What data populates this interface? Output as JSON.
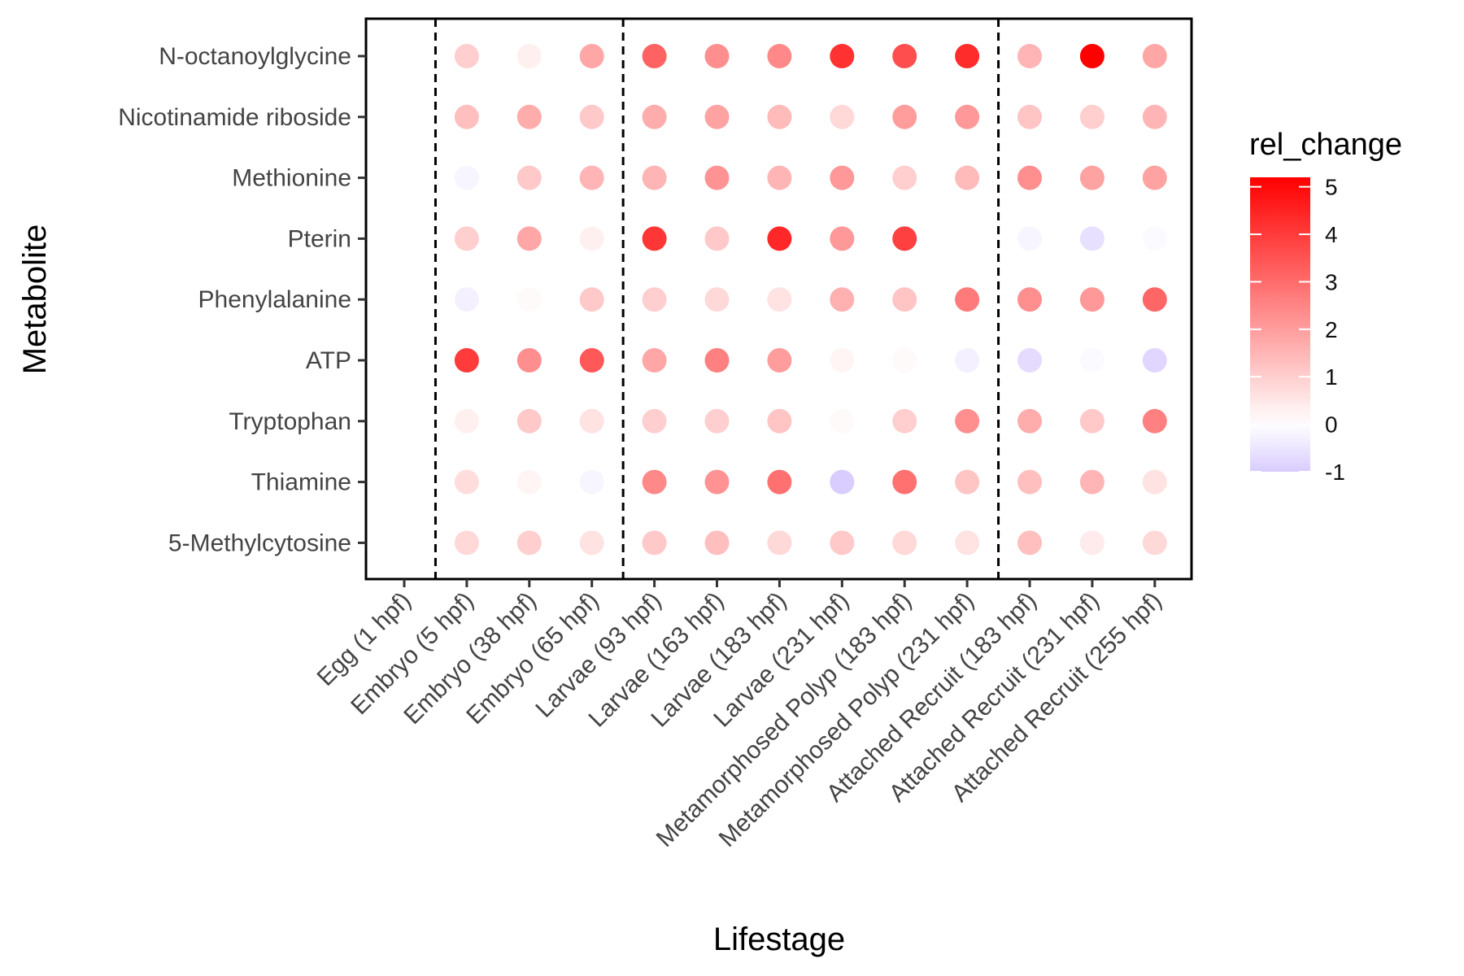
{
  "chart_data": {
    "type": "scatter",
    "xlabel": "Lifestage",
    "ylabel": "Metabolite",
    "categories_x": [
      "Egg (1 hpf)",
      "Embryo (5 hpf)",
      "Embryo (38 hpf)",
      "Embryo (65 hpf)",
      "Larvae (93 hpf)",
      "Larvae (163 hpf)",
      "Larvae (183 hpf)",
      "Larvae (231 hpf)",
      "Metamorphosed Polyp (183 hpf)",
      "Metamorphosed Polyp (231 hpf)",
      "Attached Recruit (183 hpf)",
      "Attached Recruit (231 hpf)",
      "Attached Recruit (255 hpf)"
    ],
    "categories_y": [
      "N-octanoylglycine",
      "Nicotinamide riboside",
      "Methionine",
      "Pterin",
      "Phenylalanine",
      "ATP",
      "Tryptophan",
      "Thiamine",
      "5-Methylcytosine"
    ],
    "values": [
      [
        null,
        1.0,
        0.3,
        1.8,
        3.2,
        2.3,
        2.4,
        4.2,
        3.6,
        4.3,
        1.5,
        5.2,
        1.8
      ],
      [
        null,
        1.3,
        1.7,
        1.1,
        1.7,
        1.9,
        1.4,
        0.8,
        2.0,
        2.1,
        1.2,
        1.0,
        1.5
      ],
      [
        null,
        -0.2,
        1.1,
        1.5,
        1.5,
        2.2,
        1.5,
        2.1,
        1.0,
        1.4,
        2.3,
        1.9,
        1.9
      ],
      [
        null,
        1.0,
        1.8,
        0.3,
        4.1,
        1.1,
        4.4,
        2.1,
        3.9,
        null,
        -0.2,
        -0.6,
        -0.1
      ],
      [
        null,
        -0.3,
        0.1,
        1.1,
        1.0,
        0.8,
        0.6,
        1.6,
        1.2,
        2.7,
        2.3,
        2.1,
        3.1
      ],
      [
        null,
        4.0,
        2.3,
        3.4,
        1.8,
        2.6,
        2.0,
        0.2,
        0.1,
        -0.3,
        -0.7,
        -0.1,
        -0.8
      ],
      [
        null,
        0.3,
        1.1,
        0.6,
        1.0,
        1.0,
        1.2,
        0.1,
        1.0,
        2.3,
        1.7,
        1.1,
        2.6
      ],
      [
        null,
        0.7,
        0.2,
        -0.2,
        2.4,
        2.2,
        2.9,
        -1.0,
        2.9,
        1.2,
        1.3,
        1.5,
        0.6
      ],
      [
        null,
        0.8,
        1.0,
        0.6,
        1.1,
        1.3,
        0.8,
        1.1,
        0.8,
        0.6,
        1.3,
        0.4,
        0.8
      ]
    ],
    "dividers_after_x_index": [
      0,
      3,
      9
    ],
    "legend": {
      "title": "rel_change",
      "ticks": [
        5,
        4,
        3,
        2,
        1,
        0,
        -1
      ],
      "range": [
        -1.0,
        5.2
      ],
      "colors": {
        "low": "#d9ccff",
        "mid": "#ffffff",
        "high": "#ff0000"
      },
      "placement": "right"
    },
    "grid": false
  }
}
